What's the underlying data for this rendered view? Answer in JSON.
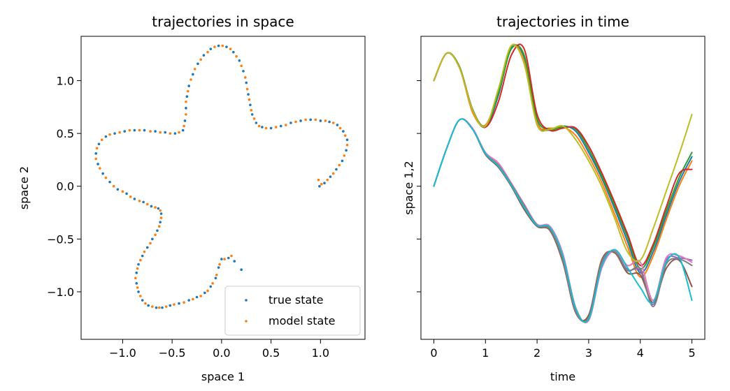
{
  "chart_data": [
    {
      "type": "scatter",
      "title": "trajectories in space",
      "xlabel": "space 1",
      "ylabel": "space 2",
      "xlim": [
        -1.42,
        1.45
      ],
      "ylim": [
        -1.45,
        1.42
      ],
      "xticks": [
        -1.0,
        -0.5,
        0.0,
        0.5,
        1.0
      ],
      "xtick_labels": [
        "−1.0",
        "−0.5",
        "0.0",
        "0.5",
        "1.0"
      ],
      "yticks": [
        -1.0,
        -0.5,
        0.0,
        0.5,
        1.0
      ],
      "ytick_labels": [
        "−1.0",
        "−0.5",
        "0.0",
        "0.5",
        "1.0"
      ],
      "grid": false,
      "legend": {
        "position": "lower-right",
        "entries": [
          "true state",
          "model state"
        ]
      },
      "series": [
        {
          "name": "true state",
          "color": "#1f77b4",
          "points": [
            [
              0.2,
              -0.79
            ],
            [
              0.13,
              -0.71
            ],
            [
              0.07,
              -0.68
            ],
            [
              0.0,
              -0.69
            ],
            [
              -0.03,
              -0.77
            ],
            [
              -0.06,
              -0.87
            ],
            [
              -0.11,
              -0.95
            ],
            [
              -0.17,
              -1.01
            ],
            [
              -0.25,
              -1.05
            ],
            [
              -0.33,
              -1.08
            ],
            [
              -0.43,
              -1.11
            ],
            [
              -0.52,
              -1.13
            ],
            [
              -0.6,
              -1.15
            ],
            [
              -0.66,
              -1.15
            ],
            [
              -0.74,
              -1.13
            ],
            [
              -0.8,
              -1.08
            ],
            [
              -0.84,
              -1.0
            ],
            [
              -0.86,
              -0.92
            ],
            [
              -0.86,
              -0.82
            ],
            [
              -0.84,
              -0.74
            ],
            [
              -0.8,
              -0.66
            ],
            [
              -0.75,
              -0.58
            ],
            [
              -0.7,
              -0.5
            ],
            [
              -0.65,
              -0.42
            ],
            [
              -0.62,
              -0.34
            ],
            [
              -0.61,
              -0.26
            ],
            [
              -0.64,
              -0.21
            ],
            [
              -0.71,
              -0.19
            ],
            [
              -0.79,
              -0.15
            ],
            [
              -0.88,
              -0.12
            ],
            [
              -0.96,
              -0.07
            ],
            [
              -1.05,
              -0.03
            ],
            [
              -1.13,
              0.04
            ],
            [
              -1.2,
              0.12
            ],
            [
              -1.25,
              0.21
            ],
            [
              -1.27,
              0.31
            ],
            [
              -1.24,
              0.4
            ],
            [
              -1.17,
              0.47
            ],
            [
              -1.08,
              0.5
            ],
            [
              -0.98,
              0.52
            ],
            [
              -0.88,
              0.53
            ],
            [
              -0.78,
              0.53
            ],
            [
              -0.67,
              0.52
            ],
            [
              -0.57,
              0.51
            ],
            [
              -0.47,
              0.5
            ],
            [
              -0.39,
              0.53
            ],
            [
              -0.37,
              0.62
            ],
            [
              -0.36,
              0.74
            ],
            [
              -0.35,
              0.85
            ],
            [
              -0.33,
              0.95
            ],
            [
              -0.29,
              1.06
            ],
            [
              -0.24,
              1.16
            ],
            [
              -0.18,
              1.24
            ],
            [
              -0.11,
              1.3
            ],
            [
              -0.03,
              1.33
            ],
            [
              0.05,
              1.32
            ],
            [
              0.12,
              1.27
            ],
            [
              0.18,
              1.19
            ],
            [
              0.22,
              1.09
            ],
            [
              0.25,
              0.98
            ],
            [
              0.27,
              0.87
            ],
            [
              0.29,
              0.77
            ],
            [
              0.31,
              0.68
            ],
            [
              0.35,
              0.6
            ],
            [
              0.41,
              0.56
            ],
            [
              0.5,
              0.55
            ],
            [
              0.6,
              0.57
            ],
            [
              0.7,
              0.6
            ],
            [
              0.8,
              0.62
            ],
            [
              0.9,
              0.63
            ],
            [
              1.0,
              0.62
            ],
            [
              1.09,
              0.61
            ],
            [
              1.17,
              0.58
            ],
            [
              1.23,
              0.52
            ],
            [
              1.27,
              0.44
            ],
            [
              1.26,
              0.34
            ],
            [
              1.22,
              0.24
            ],
            [
              1.16,
              0.16
            ],
            [
              1.1,
              0.09
            ],
            [
              1.04,
              0.03
            ],
            [
              0.99,
              0.0
            ]
          ]
        },
        {
          "name": "model state",
          "color": "#ff7f0e",
          "points": [
            [
              0.1,
              -0.66
            ],
            [
              0.03,
              -0.69
            ],
            [
              -0.02,
              -0.74
            ],
            [
              -0.05,
              -0.84
            ],
            [
              -0.09,
              -0.92
            ],
            [
              -0.14,
              -0.99
            ],
            [
              -0.21,
              -1.04
            ],
            [
              -0.29,
              -1.07
            ],
            [
              -0.38,
              -1.1
            ],
            [
              -0.48,
              -1.12
            ],
            [
              -0.56,
              -1.14
            ],
            [
              -0.63,
              -1.15
            ],
            [
              -0.7,
              -1.14
            ],
            [
              -0.77,
              -1.11
            ],
            [
              -0.82,
              -1.04
            ],
            [
              -0.85,
              -0.96
            ],
            [
              -0.87,
              -0.87
            ],
            [
              -0.85,
              -0.78
            ],
            [
              -0.82,
              -0.7
            ],
            [
              -0.78,
              -0.62
            ],
            [
              -0.72,
              -0.54
            ],
            [
              -0.67,
              -0.46
            ],
            [
              -0.63,
              -0.38
            ],
            [
              -0.61,
              -0.3
            ],
            [
              -0.62,
              -0.23
            ],
            [
              -0.67,
              -0.2
            ],
            [
              -0.75,
              -0.17
            ],
            [
              -0.83,
              -0.14
            ],
            [
              -0.92,
              -0.1
            ],
            [
              -1.0,
              -0.05
            ],
            [
              -1.09,
              0.0
            ],
            [
              -1.17,
              0.08
            ],
            [
              -1.23,
              0.17
            ],
            [
              -1.27,
              0.26
            ],
            [
              -1.26,
              0.36
            ],
            [
              -1.21,
              0.44
            ],
            [
              -1.13,
              0.49
            ],
            [
              -1.03,
              0.51
            ],
            [
              -0.93,
              0.53
            ],
            [
              -0.83,
              0.53
            ],
            [
              -0.72,
              0.52
            ],
            [
              -0.62,
              0.51
            ],
            [
              -0.52,
              0.5
            ],
            [
              -0.43,
              0.51
            ],
            [
              -0.38,
              0.57
            ],
            [
              -0.36,
              0.68
            ],
            [
              -0.36,
              0.8
            ],
            [
              -0.34,
              0.9
            ],
            [
              -0.31,
              1.01
            ],
            [
              -0.27,
              1.11
            ],
            [
              -0.21,
              1.2
            ],
            [
              -0.14,
              1.27
            ],
            [
              -0.07,
              1.32
            ],
            [
              0.01,
              1.33
            ],
            [
              0.09,
              1.3
            ],
            [
              0.15,
              1.23
            ],
            [
              0.2,
              1.14
            ],
            [
              0.24,
              1.03
            ],
            [
              0.26,
              0.92
            ],
            [
              0.28,
              0.82
            ],
            [
              0.3,
              0.72
            ],
            [
              0.33,
              0.64
            ],
            [
              0.38,
              0.57
            ],
            [
              0.45,
              0.55
            ],
            [
              0.55,
              0.56
            ],
            [
              0.65,
              0.58
            ],
            [
              0.75,
              0.61
            ],
            [
              0.85,
              0.63
            ],
            [
              0.95,
              0.63
            ],
            [
              1.05,
              0.62
            ],
            [
              1.13,
              0.6
            ],
            [
              1.2,
              0.55
            ],
            [
              1.25,
              0.48
            ],
            [
              1.27,
              0.39
            ],
            [
              1.24,
              0.29
            ],
            [
              1.19,
              0.2
            ],
            [
              1.13,
              0.12
            ],
            [
              1.07,
              0.06
            ],
            [
              1.01,
              0.02
            ],
            [
              0.98,
              0.06
            ]
          ]
        }
      ]
    },
    {
      "type": "line",
      "title": "trajectories in time",
      "xlabel": "time",
      "ylabel": "space 1,2",
      "xlim": [
        -0.25,
        5.25
      ],
      "ylim": [
        -1.45,
        1.42
      ],
      "xticks": [
        0,
        1,
        2,
        3,
        4,
        5
      ],
      "xtick_labels": [
        "0",
        "1",
        "2",
        "3",
        "4",
        "5"
      ],
      "yticks": [
        -1.0,
        -0.5,
        0.0,
        0.5,
        1.0
      ],
      "ytick_labels": [
        "",
        "",
        "",
        "",
        ""
      ],
      "grid": false,
      "palette": [
        "#1f77b4",
        "#ff7f0e",
        "#2ca02c",
        "#d62728",
        "#9467bd",
        "#8c564b",
        "#e377c2",
        "#7f7f7f",
        "#bcbd22",
        "#17becf"
      ],
      "x": [
        0.0,
        0.25,
        0.5,
        0.75,
        1.0,
        1.25,
        1.5,
        1.75,
        2.0,
        2.25,
        2.5,
        2.75,
        3.0,
        3.25,
        3.5,
        3.75,
        4.0,
        4.25,
        4.5,
        4.75,
        5.0
      ],
      "series": [
        {
          "values": [
            1.0,
            1.26,
            1.12,
            0.72,
            0.56,
            0.86,
            1.31,
            1.22,
            0.61,
            0.53,
            0.57,
            0.52,
            0.32,
            0.08,
            -0.21,
            -0.52,
            -0.82,
            -0.62,
            -0.28,
            0.04,
            0.28
          ]
        },
        {
          "values": [
            1.0,
            1.26,
            1.12,
            0.7,
            0.58,
            0.9,
            1.33,
            1.18,
            0.6,
            0.55,
            0.56,
            0.48,
            0.28,
            0.04,
            -0.26,
            -0.57,
            -0.86,
            -0.66,
            -0.32,
            0.0,
            0.24
          ]
        },
        {
          "values": [
            1.0,
            1.26,
            1.13,
            0.73,
            0.57,
            0.88,
            1.3,
            1.24,
            0.64,
            0.54,
            0.56,
            0.54,
            0.35,
            0.1,
            -0.18,
            -0.48,
            -0.78,
            -0.58,
            -0.24,
            0.08,
            0.32
          ]
        },
        {
          "values": [
            1.0,
            1.26,
            1.12,
            0.72,
            0.56,
            0.8,
            1.24,
            1.3,
            0.68,
            0.53,
            0.55,
            0.55,
            0.38,
            0.13,
            -0.15,
            -0.45,
            -0.75,
            -0.55,
            -0.2,
            0.12,
            0.16
          ]
        },
        {
          "values": [
            0.0,
            0.36,
            0.63,
            0.54,
            0.31,
            0.2,
            0.01,
            -0.19,
            -0.37,
            -0.4,
            -0.68,
            -1.18,
            -1.25,
            -0.74,
            -0.62,
            -0.79,
            -0.8,
            -1.12,
            -0.7,
            -0.68,
            -0.7
          ]
        },
        {
          "values": [
            0.0,
            0.36,
            0.63,
            0.54,
            0.3,
            0.18,
            0.0,
            -0.22,
            -0.38,
            -0.42,
            -0.72,
            -1.2,
            -1.22,
            -0.7,
            -0.63,
            -0.82,
            -0.84,
            -1.1,
            -0.78,
            -0.7,
            -0.95
          ]
        },
        {
          "values": [
            0.0,
            0.36,
            0.63,
            0.55,
            0.32,
            0.22,
            0.03,
            -0.17,
            -0.36,
            -0.38,
            -0.64,
            -1.15,
            -1.27,
            -0.78,
            -0.61,
            -0.75,
            -0.72,
            -1.08,
            -0.68,
            -0.66,
            -0.72
          ]
        },
        {
          "values": [
            0.0,
            0.36,
            0.63,
            0.54,
            0.31,
            0.2,
            0.02,
            -0.18,
            -0.37,
            -0.41,
            -0.7,
            -1.19,
            -1.24,
            -0.72,
            -0.62,
            -0.8,
            -0.78,
            -1.14,
            -0.74,
            -0.69,
            -0.75
          ]
        },
        {
          "values": [
            1.0,
            1.26,
            1.12,
            0.72,
            0.57,
            0.92,
            1.33,
            1.16,
            0.58,
            0.54,
            0.57,
            0.44,
            0.24,
            0.0,
            -0.3,
            -0.62,
            -0.7,
            -0.4,
            -0.05,
            0.3,
            0.68
          ]
        },
        {
          "values": [
            0.0,
            0.36,
            0.63,
            0.54,
            0.31,
            0.19,
            0.01,
            -0.2,
            -0.37,
            -0.39,
            -0.66,
            -1.16,
            -1.26,
            -0.76,
            -0.6,
            -0.77,
            -0.96,
            -1.1,
            -0.72,
            -0.67,
            -1.08
          ]
        }
      ]
    }
  ]
}
